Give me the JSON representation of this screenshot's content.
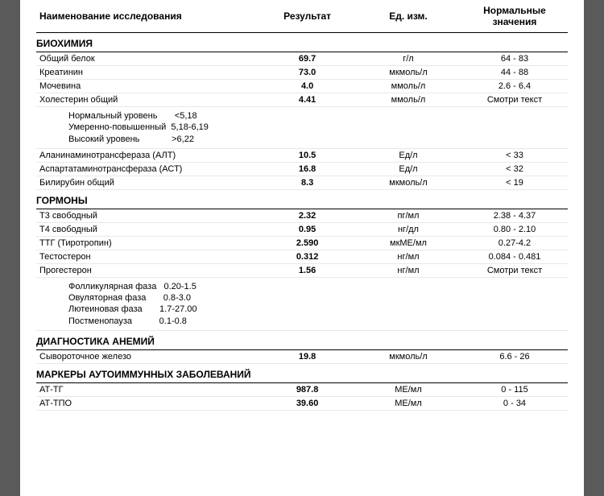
{
  "headers": {
    "name": "Наименование исследования",
    "result": "Результат",
    "units": "Ед. изм.",
    "ref": "Нормальные значения"
  },
  "sections": [
    {
      "title": "БИОХИМИЯ",
      "rows": [
        {
          "name": "Общий белок",
          "result": "69.7",
          "units": "г/л",
          "ref": "64 - 83"
        },
        {
          "name": "Креатинин",
          "result": "73.0",
          "units": "мкмоль/л",
          "ref": "44 - 88"
        },
        {
          "name": "Мочевина",
          "result": "4.0",
          "units": "ммоль/л",
          "ref": "2.6 - 6.4"
        },
        {
          "name": "Холестерин общий",
          "result": "4.41",
          "units": "ммоль/л",
          "ref": "Смотри текст",
          "note": [
            "Нормальный уровень       <5,18",
            "Умеренно-повышенный  5,18-6,19",
            "Высокий уровень             >6,22"
          ]
        },
        {
          "name": "Аланинаминотрансфераза (АЛТ)",
          "result": "10.5",
          "units": "Ед/л",
          "ref": "< 33"
        },
        {
          "name": "Аспартатаминотрансфераза (АСТ)",
          "result": "16.8",
          "units": "Ед/л",
          "ref": "< 32"
        },
        {
          "name": "Билирубин общий",
          "result": "8.3",
          "units": "мкмоль/л",
          "ref": "< 19"
        }
      ]
    },
    {
      "title": "ГОРМОНЫ",
      "rows": [
        {
          "name": "Т3 свободный",
          "result": "2.32",
          "units": "пг/мл",
          "ref": "2.38 - 4.37"
        },
        {
          "name": "Т4 свободный",
          "result": "0.95",
          "units": "нг/дл",
          "ref": "0.80 - 2.10"
        },
        {
          "name": "ТТГ (Тиротропин)",
          "result": "2.590",
          "units": "мкМЕ/мл",
          "ref": "0.27-4.2"
        },
        {
          "name": "Тестостерон",
          "result": "0.312",
          "units": "нг/мл",
          "ref": "0.084 - 0.481"
        },
        {
          "name": "Прогестерон",
          "result": "1.56",
          "units": "нг/мл",
          "ref": "Смотри текст",
          "note": [
            "Фолликулярная фаза   0.20-1.5",
            "Овуляторная фаза       0.8-3.0",
            "Лютеиновая фаза       1.7-27.00",
            "Постменопауза           0.1-0.8"
          ]
        }
      ]
    },
    {
      "title": "ДИАГНОСТИКА АНЕМИЙ",
      "rows": [
        {
          "name": "Сывороточное железо",
          "result": "19.8",
          "units": "мкмоль/л",
          "ref": "6.6 - 26"
        }
      ]
    },
    {
      "title": "МАРКЕРЫ АУТОИММУННЫХ ЗАБОЛЕВАНИЙ",
      "rows": [
        {
          "name": "АТ-ТГ",
          "result": "987.8",
          "units": "МЕ/мл",
          "ref": "0 - 115"
        },
        {
          "name": "АТ-ТПО",
          "result": "39.60",
          "units": "МЕ/мл",
          "ref": "0 - 34"
        }
      ]
    }
  ]
}
